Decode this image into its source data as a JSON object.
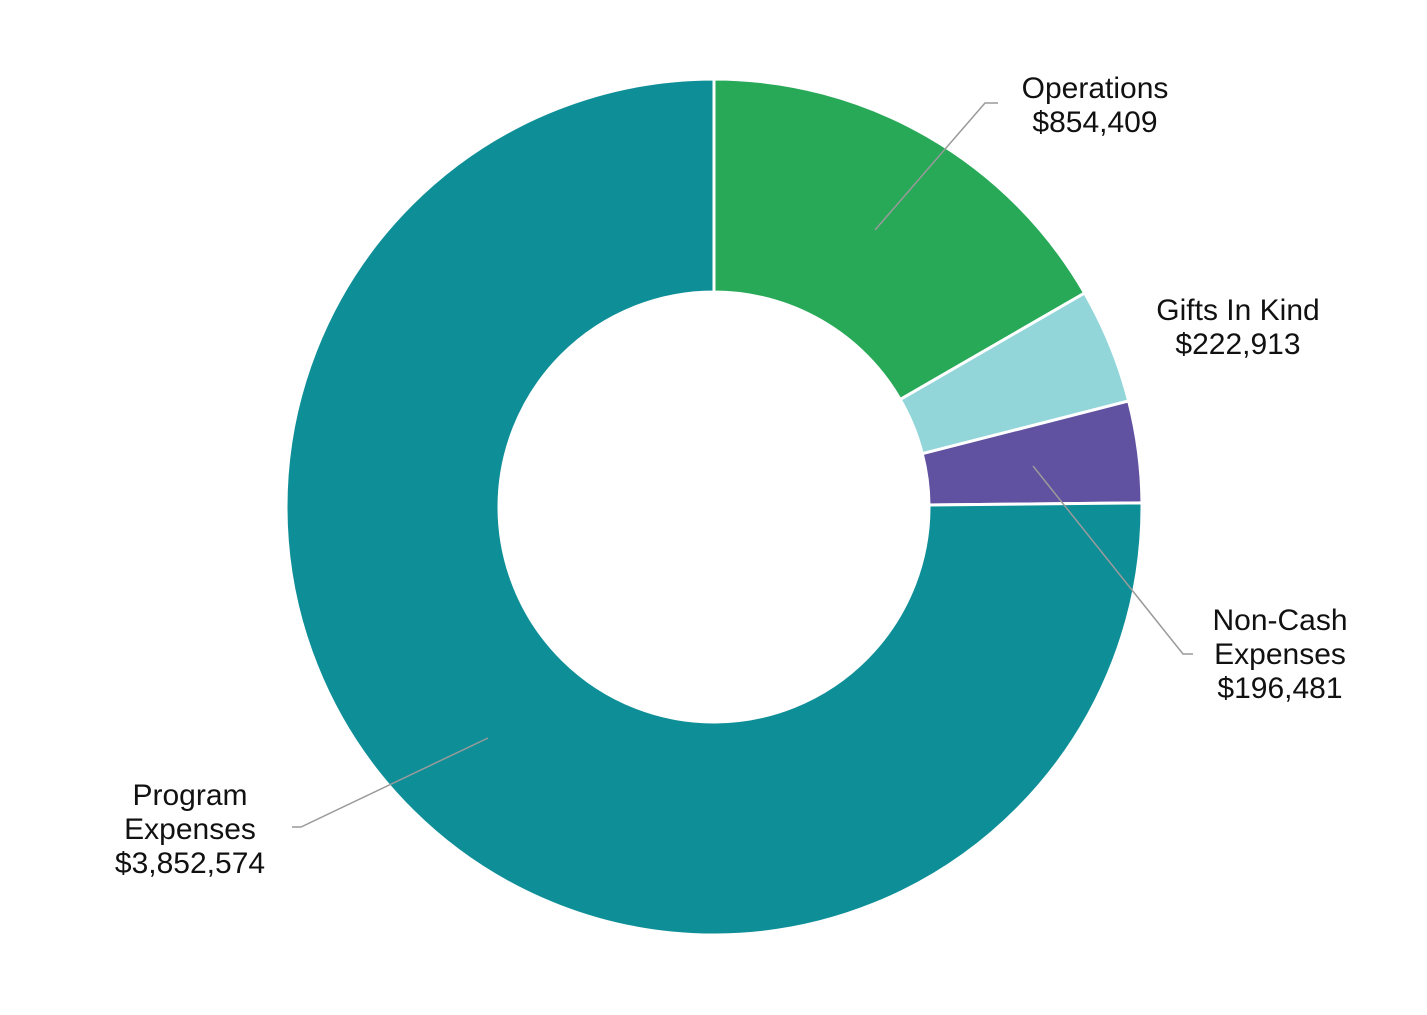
{
  "chart_data": {
    "type": "pie",
    "style": "donut",
    "slices": [
      {
        "name": "Operations",
        "value": 854409,
        "label_lines": [
          "Operations",
          "$854,409"
        ],
        "color": "#27a957"
      },
      {
        "name": "Gifts In Kind",
        "value": 222913,
        "label_lines": [
          "Gifts In Kind",
          "$222,913"
        ],
        "color": "#93d6da"
      },
      {
        "name": "Non-Cash Expenses",
        "value": 196481,
        "label_lines": [
          "Non-Cash",
          "Expenses",
          "$196,481"
        ],
        "color": "#6152a1"
      },
      {
        "name": "Program Expenses",
        "value": 3852574,
        "label_lines": [
          "Program",
          "Expenses",
          "$3,852,574"
        ],
        "color": "#0e8f98"
      }
    ],
    "start_angle": "12 o'clock",
    "direction": "clockwise",
    "legend": "none"
  }
}
